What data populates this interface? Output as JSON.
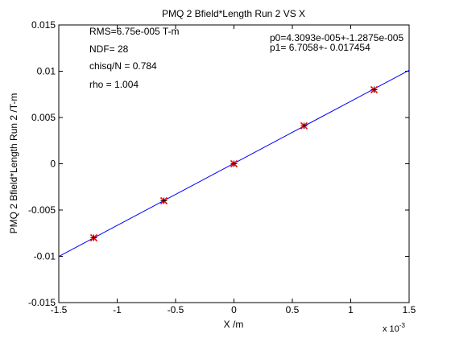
{
  "chart_data": {
    "type": "scatter",
    "title": "PMQ 2 Bfield*Length Run 2 VS X",
    "xlabel": "X /m",
    "ylabel": "PMQ 2 Bfield*Length Run 2 /T-m",
    "x_multiplier_label": "x 10",
    "x_multiplier_exponent": "-3",
    "xlim": [
      -1.5,
      1.5
    ],
    "ylim": [
      -0.015,
      0.015
    ],
    "x_ticks": [
      "-1.5",
      "-1",
      "-0.5",
      "0",
      "0.5",
      "1",
      "1.5"
    ],
    "y_ticks": [
      "0.015",
      "0.01",
      "0.005",
      "0",
      "-0.005",
      "-0.01",
      "-0.015"
    ],
    "grid": false,
    "points": [
      {
        "x": -1.2,
        "y": -0.008
      },
      {
        "x": -0.6,
        "y": -0.004
      },
      {
        "x": 0.0,
        "y": 0.0
      },
      {
        "x": 0.6,
        "y": 0.0041
      },
      {
        "x": 1.2,
        "y": 0.008
      }
    ],
    "fit": {
      "p0": 4.3093e-05,
      "p1": 6.7058
    },
    "annotations": {
      "rms": "RMS=6.75e-005 T-m",
      "ndf": "NDF=    28",
      "chisq": "chisq/N = 0.784",
      "rho": "rho     =  1.004",
      "p0": "p0=4.3093e-005+-1.2875e-005",
      "p1": "p1=   6.7058+- 0.017454"
    },
    "colors": {
      "fit_line": "#0000ff",
      "marker": "#ff0000",
      "marker_cross": "#000000"
    }
  }
}
